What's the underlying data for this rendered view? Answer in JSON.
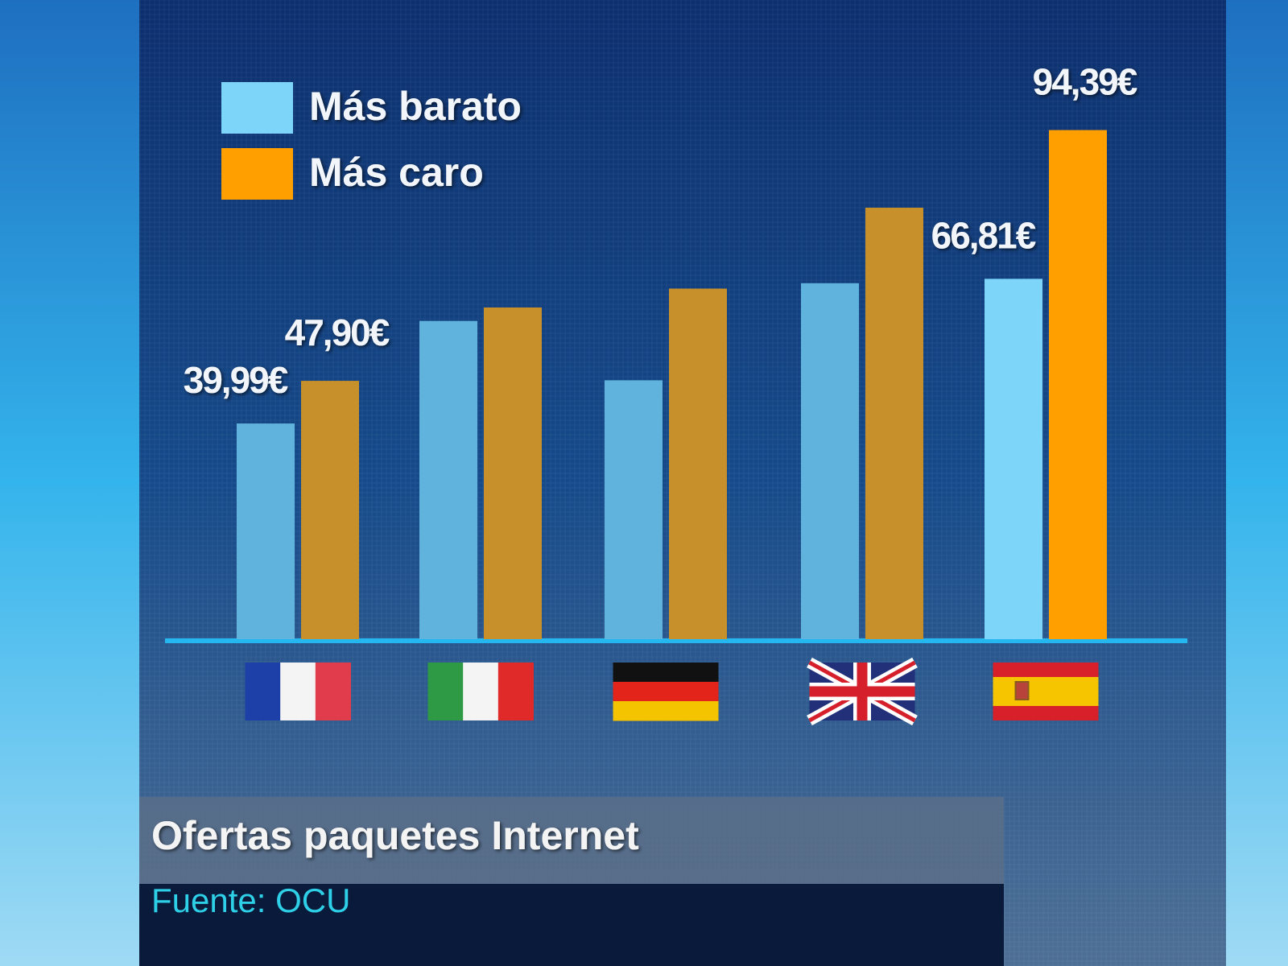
{
  "chart_data": {
    "type": "bar",
    "title": "Ofertas paquetes Internet",
    "subtitle": "Fuente: OCU",
    "categories": [
      null,
      null,
      null,
      null,
      null
    ],
    "series": [
      {
        "name": "Más barato",
        "color": "#7dd6fa",
        "bar_colors": [
          "#5fb3dc",
          "#5fb3dc",
          "#5fb3dc",
          "#5fb3dc",
          "#7dd6fa"
        ],
        "values": [
          39.99,
          59,
          48,
          66,
          66.81
        ],
        "value_labels": [
          "39,99€",
          null,
          null,
          null,
          "66,81€"
        ]
      },
      {
        "name": "Más caro",
        "color": "#ff9f00",
        "bar_colors": [
          "#c8902a",
          "#c8902a",
          "#c8902a",
          "#c8902a",
          "#ff9f00"
        ],
        "values": [
          47.9,
          61.5,
          65,
          80,
          94.39
        ],
        "value_labels": [
          "47,90€",
          null,
          null,
          null,
          "94,39€"
        ]
      }
    ],
    "legend": "top-left"
  }
}
